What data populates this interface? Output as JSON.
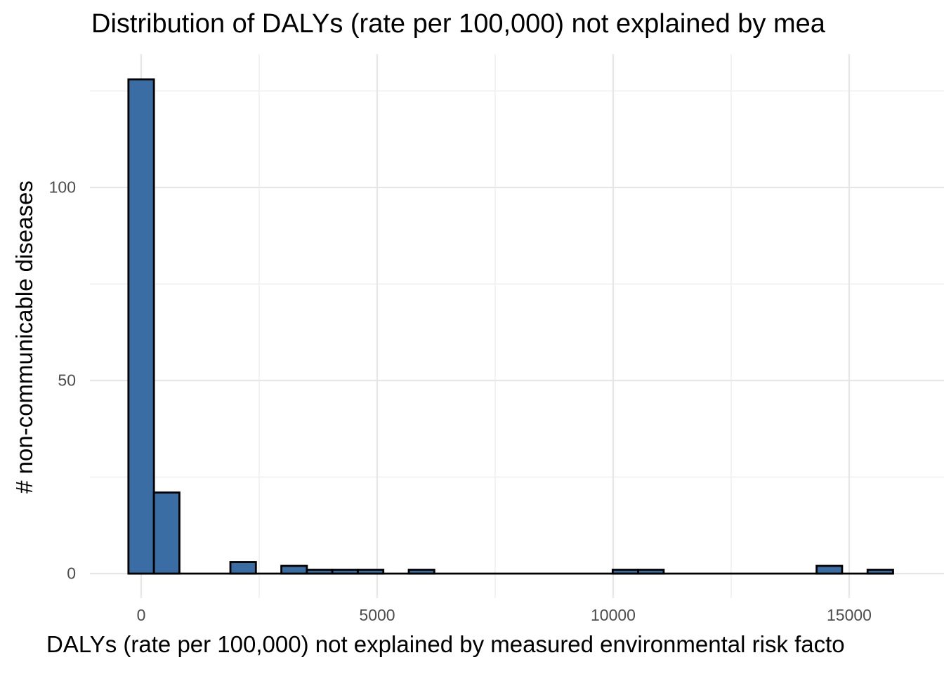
{
  "chart_data": {
    "type": "bar",
    "subtype": "histogram",
    "title": "Distribution of DALYs (rate per 100,000) not explained by mea",
    "xlabel": "DALYs (rate per 100,000) not explained by measured environmental risk facto",
    "ylabel": "# non-communicable diseases",
    "bin_width": 540,
    "bin_centers": [
      0,
      540,
      1080,
      1620,
      2160,
      2700,
      3240,
      3780,
      4320,
      4860,
      5400,
      5940,
      6480,
      7020,
      7560,
      8100,
      8640,
      9180,
      9720,
      10260,
      10800,
      11340,
      11880,
      12420,
      12960,
      13500,
      14040,
      14580,
      15120,
      15660
    ],
    "counts": [
      128,
      21,
      0,
      0,
      3,
      0,
      2,
      1,
      1,
      1,
      0,
      1,
      0,
      0,
      0,
      0,
      0,
      0,
      0,
      1,
      1,
      0,
      0,
      0,
      0,
      0,
      0,
      2,
      0,
      1
    ],
    "x_ticks_major": [
      0,
      5000,
      10000,
      15000
    ],
    "x_tick_labels": [
      "0",
      "5000",
      "10000",
      "15000"
    ],
    "x_ticks_minor": [
      2500,
      7500,
      12500
    ],
    "y_ticks_major": [
      0,
      50,
      100
    ],
    "y_tick_labels": [
      "0",
      "50",
      "100"
    ],
    "y_ticks_minor": [
      25,
      75,
      125
    ],
    "xlim": [
      -1090,
      17000
    ],
    "ylim": [
      -6.4,
      134.5
    ],
    "grid": "on",
    "legend": "none",
    "colors": {
      "bar_fill": "#3A6DA4",
      "bar_stroke": "#000000",
      "grid_major": "#E6E6E6",
      "grid_minor": "#F0F0F0",
      "tick_label": "#4D4D4D",
      "text": "#000000"
    }
  }
}
